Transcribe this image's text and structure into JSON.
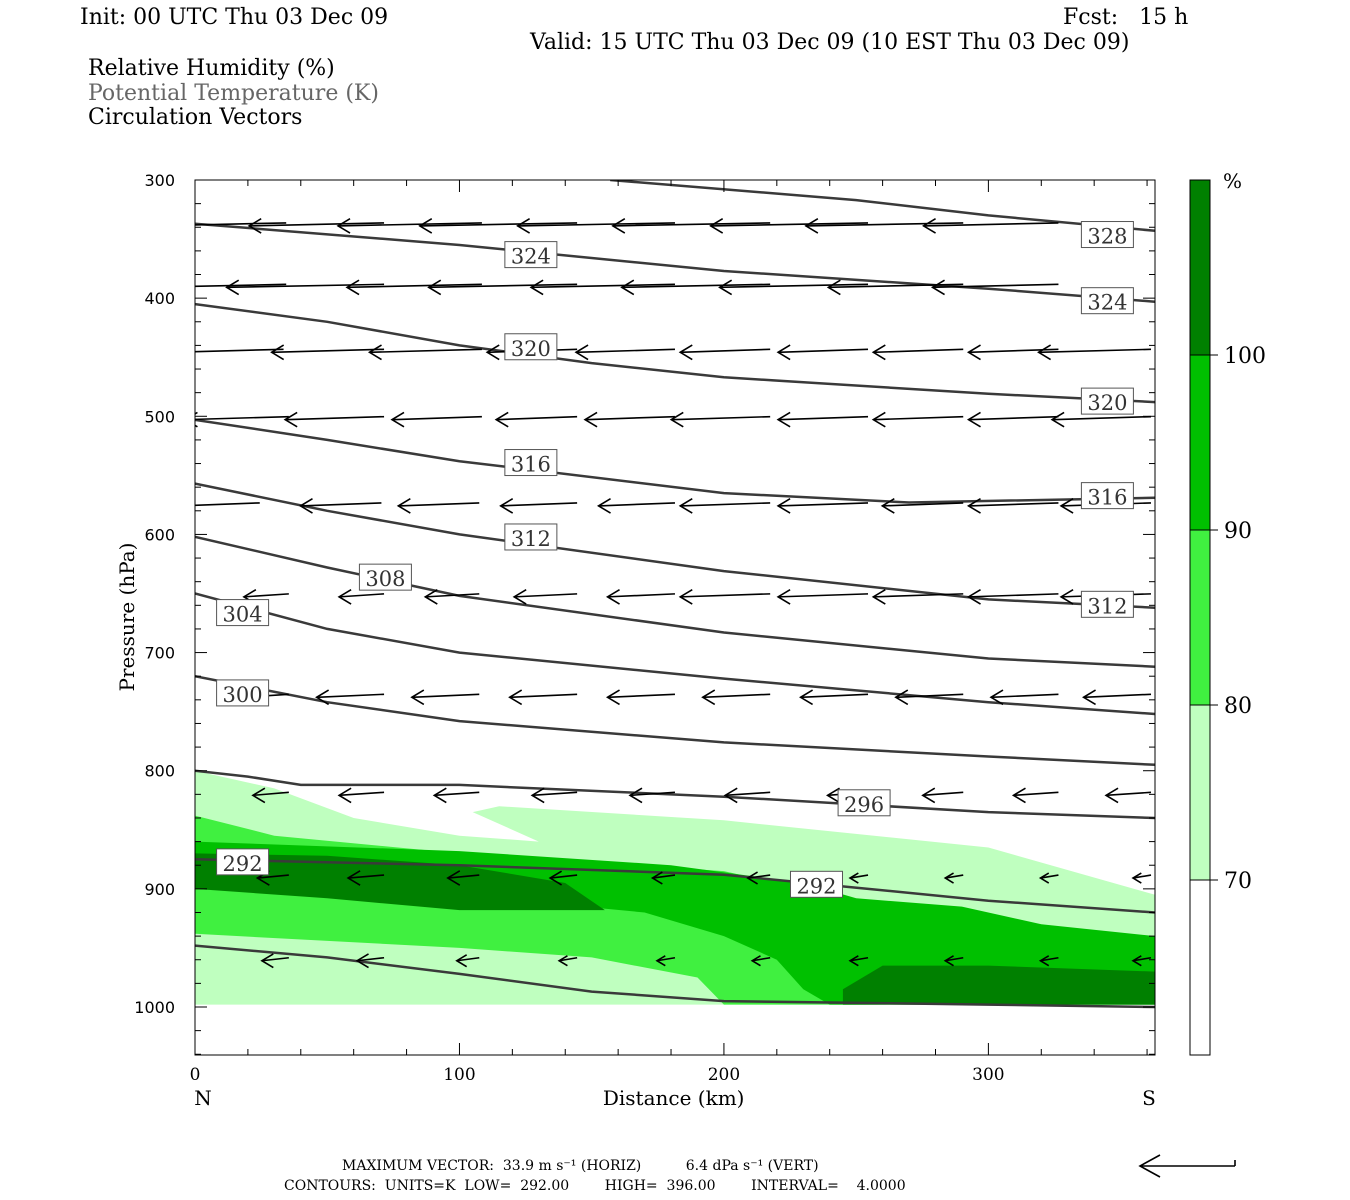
{
  "header": {
    "init": "Init: 00 UTC Thu 03 Dec 09",
    "fcst": "Fcst:   15 h",
    "valid": "Valid: 15 UTC Thu 03 Dec 09 (10 EST Thu 03 Dec 09)",
    "legend": [
      "Relative Humidity (%)",
      "Potential Temperature (K)",
      "Circulation Vectors"
    ]
  },
  "footer": {
    "line1": "MAXIMUM VECTOR:  33.9 m s⁻¹ (HORIZ)          6.4 dPa s⁻¹ (VERT)",
    "line2": "CONTOURS:  UNITS=K  LOW=  292.00        HIGH=  396.00        INTERVAL=    4.0000"
  },
  "colors": {
    "rh_70_80": "#bfffbf",
    "rh_80_90": "#40f040",
    "rh_90_100": "#00c000",
    "rh_100": "#008000",
    "theta": "#3a3a3a",
    "vector": "#000000"
  },
  "chart_data": {
    "type": "contour",
    "xlabel": "Distance (km)",
    "ylabel": "Pressure (hPa)",
    "xlim": [
      0,
      363
    ],
    "ylim": [
      1040,
      300
    ],
    "xticks": [
      0,
      100,
      200,
      300
    ],
    "yticks": [
      300,
      400,
      500,
      600,
      700,
      800,
      900,
      1000
    ],
    "x_end_labels": {
      "left": "N",
      "right": "S"
    },
    "colorbar": {
      "unit": "%",
      "levels": [
        70,
        80,
        90,
        100
      ],
      "colors": [
        "#ffffff",
        "#bfffbf",
        "#40f040",
        "#00c000",
        "#008000"
      ]
    },
    "theta_contours": [
      {
        "value": 328,
        "label": "328",
        "points": [
          [
            157,
            300
          ],
          [
            250,
            317
          ],
          [
            300,
            330
          ],
          [
            363,
            343
          ]
        ],
        "label_positions": [
          [
            345,
            347
          ]
        ]
      },
      {
        "value": 324,
        "label": "324",
        "points": [
          [
            0,
            337
          ],
          [
            100,
            355
          ],
          [
            200,
            377
          ],
          [
            300,
            392
          ],
          [
            363,
            403
          ]
        ],
        "label_positions": [
          [
            127,
            364
          ],
          [
            345,
            403
          ]
        ]
      },
      {
        "value": 320,
        "label": "320",
        "points": [
          [
            0,
            405
          ],
          [
            50,
            420
          ],
          [
            100,
            440
          ],
          [
            150,
            455
          ],
          [
            200,
            467
          ],
          [
            300,
            481
          ],
          [
            363,
            488
          ]
        ],
        "label_positions": [
          [
            127,
            442
          ],
          [
            345,
            488
          ]
        ]
      },
      {
        "value": 316,
        "label": "316",
        "points": [
          [
            0,
            503
          ],
          [
            50,
            520
          ],
          [
            100,
            538
          ],
          [
            200,
            565
          ],
          [
            270,
            573
          ],
          [
            363,
            569
          ]
        ],
        "label_positions": [
          [
            127,
            540
          ],
          [
            345,
            568
          ]
        ]
      },
      {
        "value": 312,
        "label": "312",
        "points": [
          [
            0,
            557
          ],
          [
            50,
            580
          ],
          [
            100,
            600
          ],
          [
            200,
            631
          ],
          [
            300,
            655
          ],
          [
            363,
            662
          ]
        ],
        "label_positions": [
          [
            127,
            603
          ],
          [
            345,
            660
          ]
        ]
      },
      {
        "value": 308,
        "label": "308",
        "points": [
          [
            0,
            602
          ],
          [
            50,
            628
          ],
          [
            100,
            652
          ],
          [
            200,
            683
          ],
          [
            300,
            705
          ],
          [
            363,
            712
          ]
        ],
        "label_positions": [
          [
            72,
            637
          ]
        ]
      },
      {
        "value": 304,
        "label": "304",
        "points": [
          [
            0,
            650
          ],
          [
            50,
            680
          ],
          [
            100,
            700
          ],
          [
            200,
            722
          ],
          [
            300,
            742
          ],
          [
            363,
            752
          ]
        ],
        "label_positions": [
          [
            18,
            667
          ]
        ]
      },
      {
        "value": 300,
        "label": "300",
        "points": [
          [
            0,
            720
          ],
          [
            50,
            742
          ],
          [
            100,
            758
          ],
          [
            200,
            776
          ],
          [
            300,
            788
          ],
          [
            363,
            795
          ]
        ],
        "label_positions": [
          [
            18,
            735
          ]
        ]
      },
      {
        "value": 296,
        "label": "296",
        "points": [
          [
            0,
            800
          ],
          [
            20,
            805
          ],
          [
            40,
            812
          ],
          [
            100,
            812
          ],
          [
            200,
            822
          ],
          [
            300,
            835
          ],
          [
            363,
            840
          ]
        ],
        "label_positions": [
          [
            253,
            828
          ]
        ]
      },
      {
        "value": 292,
        "label": "292",
        "points": [
          [
            0,
            875
          ],
          [
            100,
            880
          ],
          [
            200,
            888
          ],
          [
            300,
            910
          ],
          [
            363,
            920
          ]
        ],
        "label_positions": [
          [
            18,
            878
          ],
          [
            235,
            897
          ]
        ]
      },
      {
        "value": 288,
        "label": "",
        "points": [
          [
            0,
            948
          ],
          [
            50,
            958
          ],
          [
            100,
            972
          ],
          [
            150,
            987
          ],
          [
            200,
            995
          ],
          [
            300,
            998
          ],
          [
            363,
            1000
          ]
        ],
        "label_positions": []
      }
    ],
    "rh_regions": [
      {
        "level": "70-80",
        "color": "#bfffbf",
        "points": [
          [
            0,
            800
          ],
          [
            30,
            815
          ],
          [
            60,
            840
          ],
          [
            100,
            855
          ],
          [
            130,
            860
          ],
          [
            105,
            835
          ],
          [
            115,
            830
          ],
          [
            200,
            842
          ],
          [
            300,
            865
          ],
          [
            363,
            905
          ],
          [
            363,
            998
          ],
          [
            0,
            998
          ]
        ]
      },
      {
        "level": "80-90",
        "color": "#40f040",
        "points": [
          [
            0,
            838
          ],
          [
            30,
            855
          ],
          [
            100,
            870
          ],
          [
            200,
            885
          ],
          [
            250,
            910
          ],
          [
            300,
            935
          ],
          [
            363,
            945
          ],
          [
            363,
            998
          ],
          [
            200,
            998
          ],
          [
            190,
            975
          ],
          [
            150,
            958
          ],
          [
            100,
            950
          ],
          [
            0,
            938
          ]
        ]
      },
      {
        "level": "90-100",
        "color": "#00c000",
        "points": [
          [
            0,
            860
          ],
          [
            100,
            868
          ],
          [
            180,
            880
          ],
          [
            230,
            895
          ],
          [
            250,
            908
          ],
          [
            290,
            915
          ],
          [
            320,
            930
          ],
          [
            363,
            940
          ],
          [
            363,
            998
          ],
          [
            240,
            998
          ],
          [
            230,
            985
          ],
          [
            220,
            960
          ],
          [
            200,
            940
          ],
          [
            170,
            920
          ],
          [
            100,
            905
          ],
          [
            0,
            900
          ]
        ]
      },
      {
        "level": ">100",
        "color": "#008000",
        "points": [
          [
            0,
            870
          ],
          [
            50,
            872
          ],
          [
            100,
            880
          ],
          [
            140,
            895
          ],
          [
            155,
            918
          ],
          [
            100,
            918
          ],
          [
            50,
            908
          ],
          [
            0,
            900
          ]
        ]
      },
      {
        "level": ">100",
        "color": "#008000",
        "points": [
          [
            245,
            985
          ],
          [
            260,
            965
          ],
          [
            300,
            965
          ],
          [
            363,
            970
          ],
          [
            363,
            998
          ],
          [
            245,
            998
          ]
        ]
      }
    ],
    "vector_rows": [
      {
        "p": 338,
        "x0": [
          0,
          36,
          73,
          110,
          146,
          183,
          219,
          256,
          292,
          328
        ],
        "dx": [
          -35,
          -30,
          -30,
          -32,
          -35,
          -35,
          -35,
          -35,
          -35,
          -30
        ]
      },
      {
        "p": 390,
        "x0": [
          36,
          73,
          110,
          146,
          183,
          219,
          256,
          292,
          328
        ],
        "dx": [
          -30,
          -35,
          -30,
          -33,
          -32,
          -33,
          -33,
          -30,
          -28
        ]
      },
      {
        "p": 445,
        "x0": [
          35,
          73,
          110,
          146,
          183,
          219,
          256,
          292,
          328,
          363
        ],
        "dx": [
          -25,
          -25,
          -25,
          -20,
          -22,
          -20,
          -20,
          -20,
          -20,
          -25
        ]
      },
      {
        "p": 502,
        "x0": [
          37,
          73,
          110,
          146,
          183,
          219,
          256,
          292,
          328,
          363
        ],
        "dx": [
          -23,
          -22,
          -20,
          -18,
          -20,
          -22,
          -20,
          -20,
          -20,
          -22
        ]
      },
      {
        "p": 575,
        "x0": [
          26,
          72,
          109,
          146,
          183,
          219,
          256,
          292,
          328,
          363
        ],
        "dx": [
          -18,
          -18,
          -18,
          -17,
          -17,
          -20,
          -20,
          -18,
          -20,
          -20
        ]
      },
      {
        "p": 652,
        "x0": [
          37,
          73,
          109,
          146,
          183,
          219,
          256,
          292,
          328,
          363
        ],
        "dx": [
          -10,
          -10,
          -12,
          -14,
          -15,
          -20,
          -20,
          -20,
          -20,
          -20
        ]
      },
      {
        "p": 737,
        "x0": [
          37,
          73,
          109,
          146,
          183,
          219,
          256,
          292,
          328,
          363
        ],
        "dx": [
          -10,
          -15,
          -15,
          -15,
          -15,
          -15,
          -15,
          -15,
          -15,
          -15
        ]
      },
      {
        "p": 820,
        "x0": [
          37,
          73,
          109,
          146,
          183,
          219,
          256,
          292,
          328,
          363
        ],
        "dx": [
          -8,
          -10,
          -10,
          -10,
          -10,
          -10,
          -9,
          -9,
          -10,
          -10
        ]
      },
      {
        "p": 890,
        "x0": [
          37,
          73,
          109,
          146,
          183,
          219,
          256,
          292,
          328,
          363
        ],
        "dx": [
          -7,
          -8,
          -7,
          -6,
          -5,
          -5,
          -4,
          -4,
          -4,
          -4
        ]
      },
      {
        "p": 960,
        "x0": [
          37,
          73,
          109,
          146,
          183,
          219,
          256,
          292,
          328,
          363
        ],
        "dx": [
          -6,
          -6,
          -5,
          -4,
          -4,
          -4,
          -4,
          -4,
          -4,
          -4
        ]
      }
    ],
    "max_vector_key": "arrow"
  }
}
